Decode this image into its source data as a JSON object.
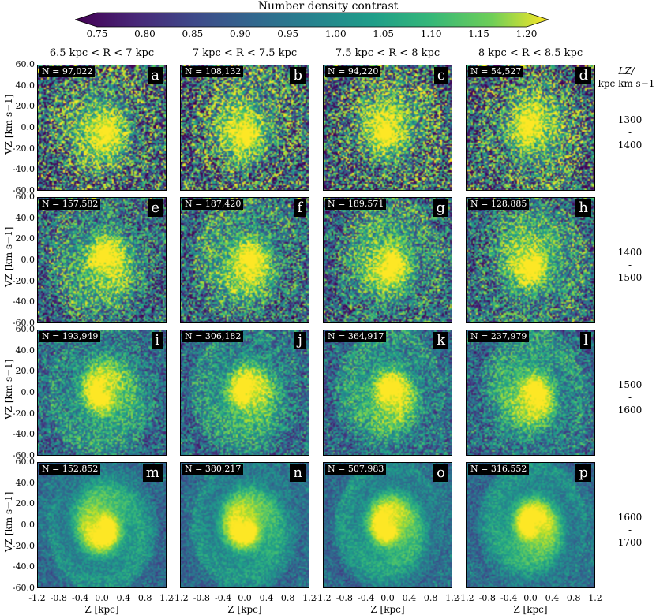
{
  "colorbar": {
    "title": "Number density contrast",
    "ticks": [
      "0.75",
      "0.80",
      "0.85",
      "0.90",
      "0.95",
      "1.00",
      "1.05",
      "1.10",
      "1.15",
      "1.20"
    ],
    "min": 0.75,
    "max": 1.2,
    "colormap": "viridis"
  },
  "column_titles": [
    "6.5 kpc < R < 7 kpc",
    "7 kpc < R < 7.5 kpc",
    "7.5 kpc < R < 8 kpc",
    "8 kpc < R < 8.5 kpc"
  ],
  "lz_header": "L_Z/ kpc km s^-1",
  "lz_header_line1": "LZ/",
  "lz_header_line2": "kpc km s−1",
  "row_lz": [
    {
      "lo": "1300",
      "sep": "-",
      "hi": "1400"
    },
    {
      "lo": "1400",
      "sep": "-",
      "hi": "1500"
    },
    {
      "lo": "1500",
      "sep": "-",
      "hi": "1600"
    },
    {
      "lo": "1600",
      "sep": "-",
      "hi": "1700"
    }
  ],
  "ylabel": "VZ [km s−1]",
  "xlabel": "Z [kpc]",
  "yticks": [
    "60.0",
    "40.0",
    "20.0",
    "0.0",
    "-20.0",
    "-40.0",
    "-60.0"
  ],
  "xticks": [
    "-1.2",
    "-0.8",
    "-0.4",
    "0.0",
    "0.4",
    "0.8",
    "1.2"
  ],
  "panels": [
    {
      "letter": "a",
      "n": "N = 97,022"
    },
    {
      "letter": "b",
      "n": "N = 108,132"
    },
    {
      "letter": "c",
      "n": "N = 94,220"
    },
    {
      "letter": "d",
      "n": "N = 54,527"
    },
    {
      "letter": "e",
      "n": "N = 157,582"
    },
    {
      "letter": "f",
      "n": "N = 187,420"
    },
    {
      "letter": "g",
      "n": "N = 189,571"
    },
    {
      "letter": "h",
      "n": "N = 128,885"
    },
    {
      "letter": "i",
      "n": "N = 193,949"
    },
    {
      "letter": "j",
      "n": "N = 306,182"
    },
    {
      "letter": "k",
      "n": "N = 364,917"
    },
    {
      "letter": "l",
      "n": "N = 237,979"
    },
    {
      "letter": "m",
      "n": "N = 152,852"
    },
    {
      "letter": "n",
      "n": "N = 380,217"
    },
    {
      "letter": "o",
      "n": "N = 507,983"
    },
    {
      "letter": "p",
      "n": "N = 316,552"
    }
  ],
  "chart_data": {
    "type": "heatmap",
    "title": "",
    "xlabel": "Z [kpc]",
    "ylabel": "VZ [km s−1]",
    "xlim": [
      -1.2,
      1.2
    ],
    "ylim": [
      -60,
      60
    ],
    "colorbar_label": "Number density contrast",
    "clim": [
      0.75,
      1.2
    ],
    "grid": false
  }
}
